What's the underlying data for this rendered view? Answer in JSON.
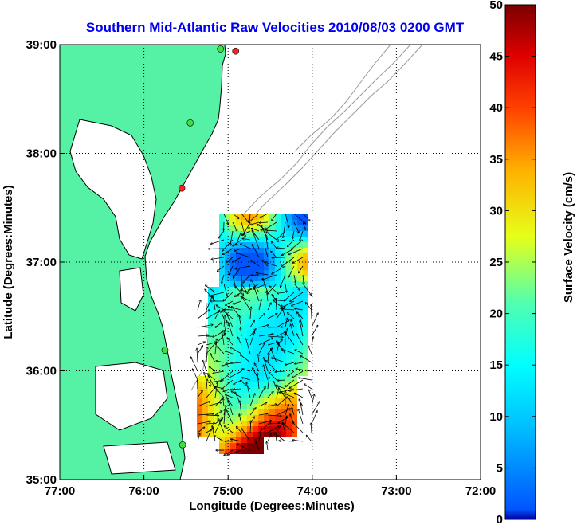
{
  "title": "Southern Mid-Atlantic Raw Velocities 2010/08/03 0200 GMT",
  "map": {
    "xlabel": "Longitude (Degrees:Minutes)",
    "ylabel": "Latitude (Degrees:Minutes)",
    "lon_range": [
      -77,
      -72
    ],
    "lat_range": [
      35,
      39
    ],
    "x_ticks": [
      {
        "value": -77,
        "label": "77:00"
      },
      {
        "value": -76,
        "label": "76:00"
      },
      {
        "value": -75,
        "label": "75:00"
      },
      {
        "value": -74,
        "label": "74:00"
      },
      {
        "value": -73,
        "label": "73:00"
      },
      {
        "value": -72,
        "label": "72:00"
      }
    ],
    "y_ticks": [
      {
        "value": 39,
        "label": "39:00"
      },
      {
        "value": 38,
        "label": "38:00"
      },
      {
        "value": 37,
        "label": "37:00"
      },
      {
        "value": 36,
        "label": "36:00"
      },
      {
        "value": 35,
        "label": "35:00"
      }
    ],
    "grid": "dotted",
    "land_color": "#55f2a6",
    "coast_color": "#000000",
    "bathymetry_color": "#9a9a9a",
    "stations": [
      {
        "lon": -74.91,
        "lat": 38.94,
        "color": "#ff2020"
      },
      {
        "lon": -75.09,
        "lat": 38.96,
        "color": "#40e040"
      },
      {
        "lon": -75.45,
        "lat": 38.28,
        "color": "#40e040"
      },
      {
        "lon": -75.55,
        "lat": 37.68,
        "color": "#ff2020"
      },
      {
        "lon": -75.75,
        "lat": 36.19,
        "color": "#40e040"
      },
      {
        "lon": -75.54,
        "lat": 35.32,
        "color": "#40e040"
      }
    ]
  },
  "colorbar": {
    "label": "Surface Velocity (cm/s)",
    "min": 0,
    "max": 50,
    "tick_labels": [
      "0",
      "5",
      "10",
      "15",
      "20",
      "25",
      "30",
      "35",
      "40",
      "45",
      "50"
    ]
  }
}
